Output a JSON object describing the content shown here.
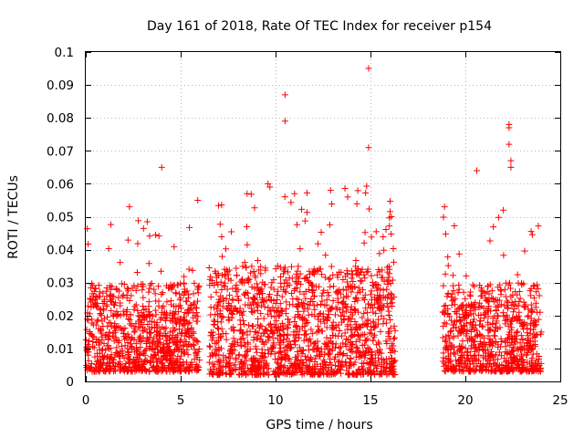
{
  "chart_data": {
    "type": "scatter",
    "title": "Day 161 of 2018, Rate Of TEC Index for receiver p154",
    "xlabel": "GPS time / hours",
    "ylabel": "ROTI / TECUs",
    "xlim": [
      0,
      25
    ],
    "ylim": [
      0,
      0.1
    ],
    "xticks": [
      0,
      5,
      10,
      15,
      20,
      25
    ],
    "xtick_labels": [
      "0",
      "5",
      "10",
      "15",
      "20",
      "25"
    ],
    "yticks": [
      0,
      0.01,
      0.02,
      0.03,
      0.04,
      0.05,
      0.06,
      0.07,
      0.08,
      0.09,
      0.1
    ],
    "ytick_labels": [
      "0",
      "0.01",
      "0.02",
      "0.03",
      "0.04",
      "0.05",
      "0.06",
      "0.07",
      "0.08",
      "0.09",
      "0.1"
    ],
    "grid": true,
    "marker": "+",
    "color": "#ff0000",
    "segments": [
      {
        "x_start": 0.0,
        "x_end": 6.0,
        "base_low": 0.003,
        "typical_high": 0.03,
        "peak_high": 0.05
      },
      {
        "x_start": 6.5,
        "x_end": 16.3,
        "base_low": 0.002,
        "typical_high": 0.035,
        "peak_high": 0.06
      },
      {
        "x_start": 18.8,
        "x_end": 24.0,
        "base_low": 0.003,
        "typical_high": 0.03,
        "peak_high": 0.05
      }
    ],
    "outliers": [
      {
        "x": 4.0,
        "y": 0.065
      },
      {
        "x": 10.5,
        "y": 0.087
      },
      {
        "x": 10.5,
        "y": 0.079
      },
      {
        "x": 14.9,
        "y": 0.095
      },
      {
        "x": 14.9,
        "y": 0.071
      },
      {
        "x": 9.7,
        "y": 0.059
      },
      {
        "x": 9.6,
        "y": 0.06
      },
      {
        "x": 12.9,
        "y": 0.058
      },
      {
        "x": 11.0,
        "y": 0.057
      },
      {
        "x": 8.5,
        "y": 0.057
      },
      {
        "x": 13.8,
        "y": 0.056
      },
      {
        "x": 5.9,
        "y": 0.055
      },
      {
        "x": 2.3,
        "y": 0.053
      },
      {
        "x": 18.9,
        "y": 0.053
      },
      {
        "x": 22.3,
        "y": 0.078
      },
      {
        "x": 22.3,
        "y": 0.077
      },
      {
        "x": 22.3,
        "y": 0.072
      },
      {
        "x": 22.4,
        "y": 0.067
      },
      {
        "x": 22.4,
        "y": 0.065
      },
      {
        "x": 20.6,
        "y": 0.064
      },
      {
        "x": 22.0,
        "y": 0.052
      },
      {
        "x": 16.1,
        "y": 0.05
      }
    ]
  }
}
